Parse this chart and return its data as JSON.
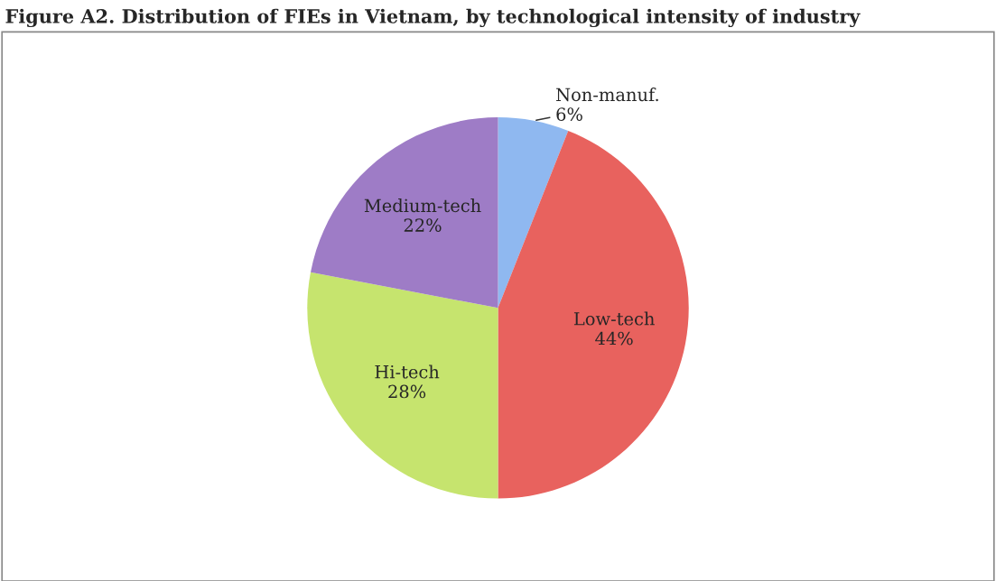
{
  "chart_data": {
    "type": "pie",
    "title": "Figure A2. Distribution of FIEs in Vietnam, by technological intensity of industry",
    "categories": [
      "Non-manuf.",
      "Low-tech",
      "Hi-tech",
      "Medium-tech"
    ],
    "values": [
      6,
      44,
      28,
      22
    ],
    "value_labels": [
      "6%",
      "44%",
      "28%",
      "22%"
    ],
    "colors": [
      "#8fb8f0",
      "#e8625e",
      "#c6e46e",
      "#9e7cc6"
    ],
    "legend": false
  }
}
